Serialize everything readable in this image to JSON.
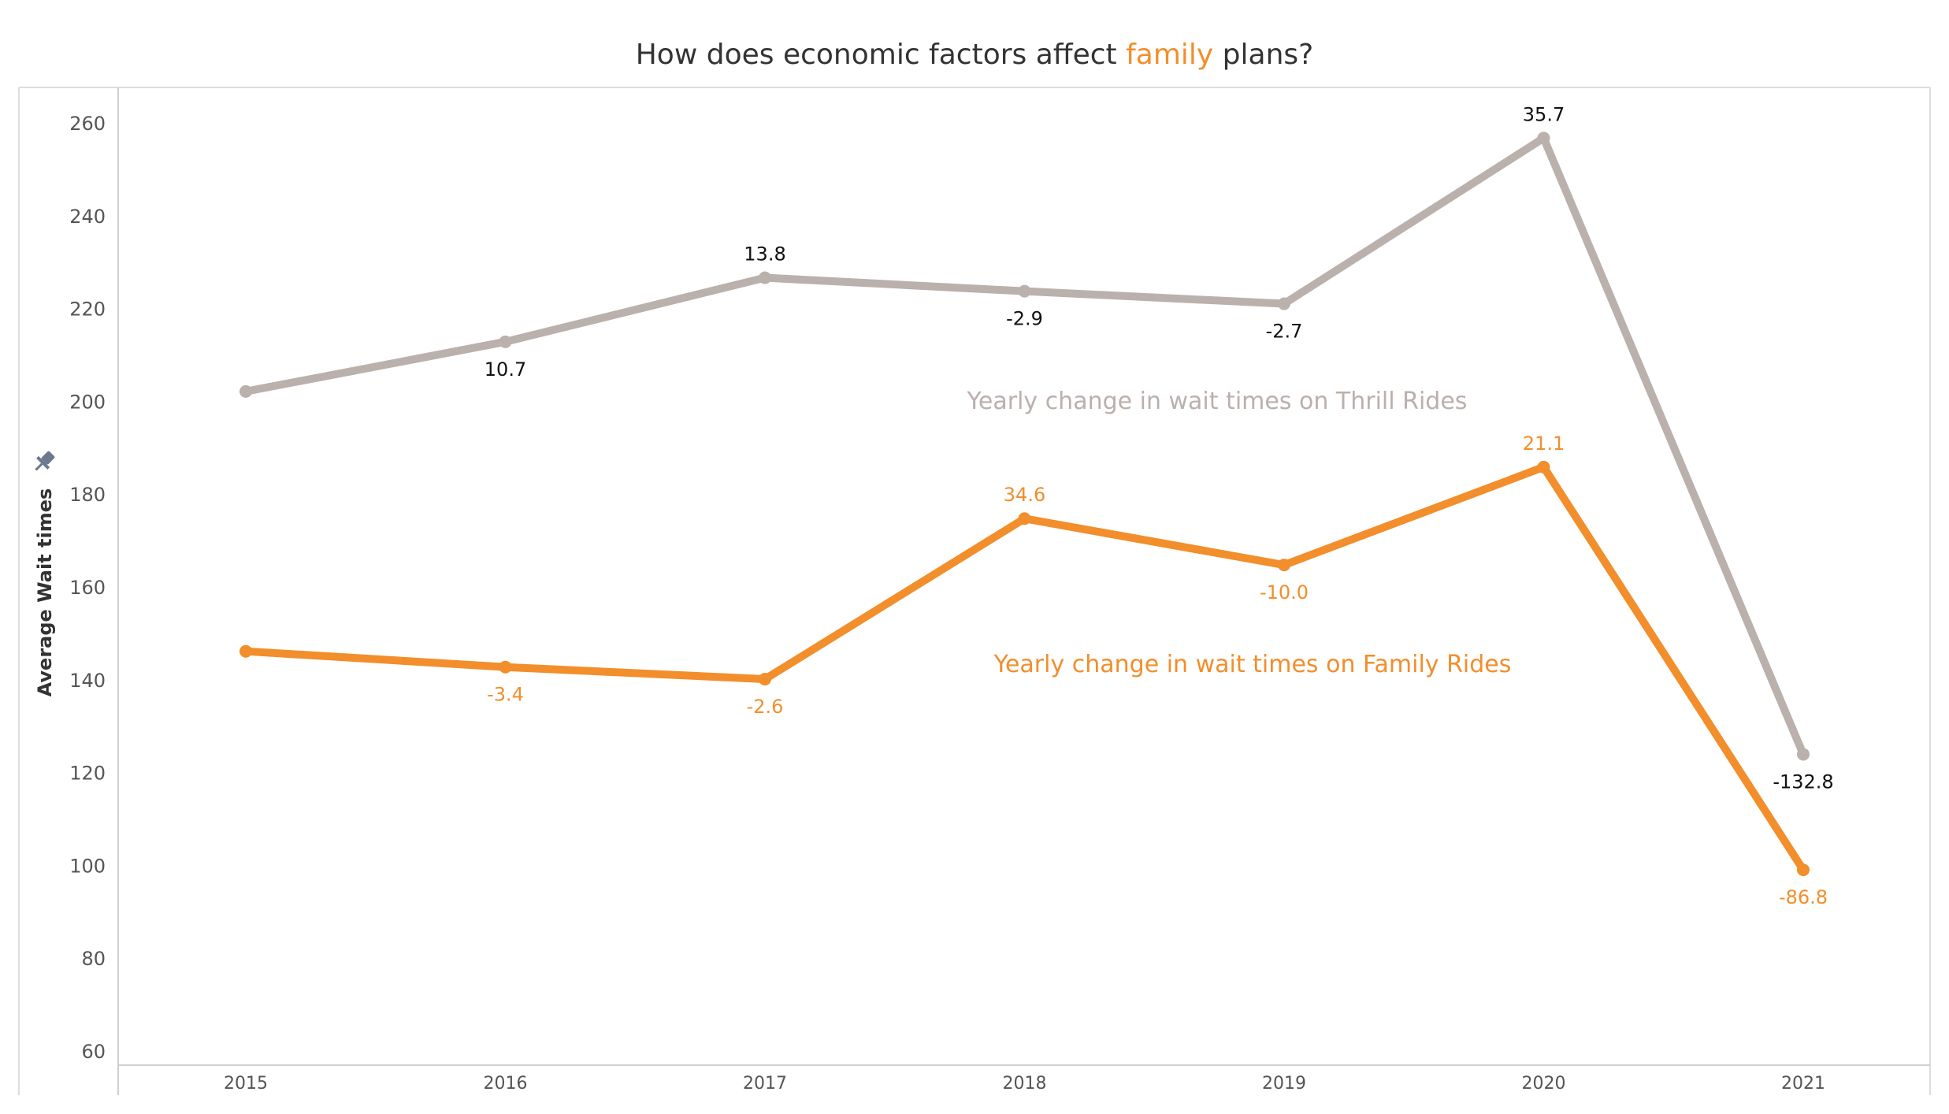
{
  "chart_data": {
    "type": "line",
    "title": {
      "prefix": "How does economic factors affect ",
      "highlight": "family",
      "suffix": " plans?"
    },
    "title_highlight_color": "#F28E2B",
    "ylabel": "Average Wait times",
    "ylim": [
      60,
      266
    ],
    "yticks": [
      60,
      80,
      100,
      120,
      140,
      160,
      180,
      200,
      220,
      240,
      260
    ],
    "x": [
      "2015",
      "2016",
      "2017",
      "2018",
      "2019",
      "2020",
      "2021"
    ],
    "grid": false,
    "legend": "none",
    "series": [
      {
        "key": "thrill",
        "annotation": "Yearly change in  wait times on Thrill Rides",
        "color": "#BAB0AC",
        "label_color": "#111111",
        "values": [
          202.3,
          213.0,
          226.8,
          223.9,
          221.2,
          256.9,
          124.1
        ],
        "labels": [
          "",
          "10.7",
          "13.8",
          "-2.9",
          "-2.7",
          "35.7",
          "-132.8"
        ],
        "label_pos": [
          "",
          "below",
          "above",
          "below",
          "below",
          "above",
          "below"
        ]
      },
      {
        "key": "family",
        "annotation": "Yearly change in wait times on Family Rides",
        "color": "#F28E2B",
        "label_color": "#F28E2B",
        "values": [
          146.3,
          142.9,
          140.3,
          174.9,
          164.9,
          186.0,
          99.2
        ],
        "labels": [
          "",
          "-3.4",
          "-2.6",
          "34.6",
          "-10.0",
          "21.1",
          "-86.8"
        ],
        "label_pos": [
          "",
          "below",
          "below",
          "above",
          "below",
          "above",
          "below"
        ]
      }
    ]
  }
}
